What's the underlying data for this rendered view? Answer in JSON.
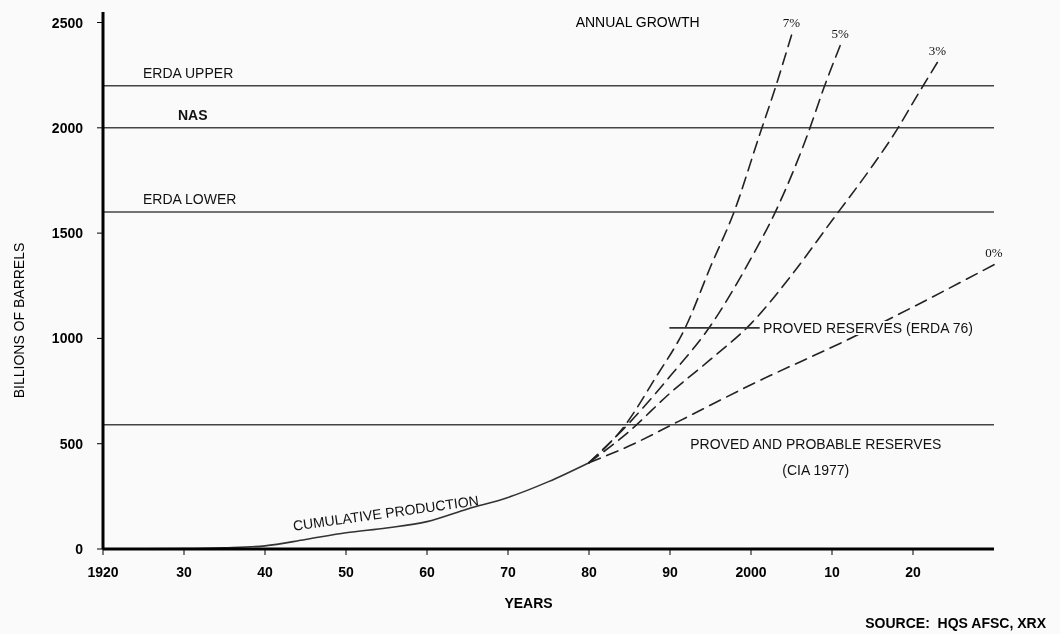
{
  "chart_data": {
    "type": "line",
    "xlabel": "YEARS",
    "ylabel": "BILLIONS OF BARRELS",
    "xlim": [
      1920,
      2030
    ],
    "xticks": [
      1920,
      {
        "value": 1930,
        "label": "30"
      },
      {
        "value": 1940,
        "label": "40"
      },
      {
        "value": 1950,
        "label": "50"
      },
      {
        "value": 1960,
        "label": "60"
      },
      {
        "value": 1970,
        "label": "70"
      },
      {
        "value": 1980,
        "label": "80"
      },
      {
        "value": 1990,
        "label": "90"
      },
      2000,
      {
        "value": 2010,
        "label": "10"
      },
      {
        "value": 2020,
        "label": "20"
      }
    ],
    "ylim": [
      0,
      2550
    ],
    "yticks": [
      0,
      500,
      1000,
      1500,
      2000,
      2500
    ],
    "grid": false,
    "marker": "none",
    "series": [
      {
        "name": "CUMULATIVE PRODUCTION",
        "color": "#333333",
        "line_style": "solid",
        "x": [
          1920,
          1930,
          1935,
          1940,
          1945,
          1950,
          1955,
          1960,
          1965,
          1970,
          1975,
          1980
        ],
        "values": [
          0,
          2,
          6,
          15,
          45,
          77,
          100,
          130,
          190,
          245,
          320,
          410
        ]
      },
      {
        "name": "7%",
        "color": "#222222",
        "line_style": "dashed",
        "x": [
          1980,
          1984.5,
          1988,
          1992,
          1995,
          1998,
          2001,
          2003,
          2005
        ],
        "values": [
          410,
          590,
          800,
          1060,
          1340,
          1610,
          1960,
          2190,
          2440
        ]
      },
      {
        "name": "5%",
        "color": "#222222",
        "line_style": "dashed",
        "x": [
          1980,
          1985,
          1990,
          1995,
          2000,
          2003,
          2007,
          2009,
          2011
        ],
        "values": [
          410,
          600,
          820,
          1060,
          1380,
          1600,
          1970,
          2190,
          2390
        ]
      },
      {
        "name": "3%",
        "color": "#222222",
        "line_style": "dashed",
        "x": [
          1980,
          1985,
          1990,
          1995,
          2000,
          2005,
          2010,
          2015,
          2018,
          2020,
          2023
        ],
        "values": [
          410,
          560,
          740,
          900,
          1070,
          1300,
          1560,
          1820,
          1990,
          2120,
          2310
        ]
      },
      {
        "name": "0%",
        "color": "#222222",
        "line_style": "dashed",
        "x": [
          1980,
          1985,
          1991,
          2000,
          2012,
          2018,
          2030
        ],
        "values": [
          410,
          490,
          605,
          780,
          995,
          1110,
          1350
        ]
      },
      {
        "name": "PROVED RESERVES (ERDA 76)",
        "color": "#333333",
        "line_style": "solid",
        "x": [
          1990,
          2001
        ],
        "values": [
          1050,
          1050
        ]
      }
    ],
    "ref_lines": [
      {
        "axis": "y",
        "value": 2200,
        "label": "ERDA UPPER",
        "color": "#444444"
      },
      {
        "axis": "y",
        "value": 2000,
        "label": "NAS",
        "color": "#444444"
      },
      {
        "axis": "y",
        "value": 1600,
        "label": "ERDA LOWER",
        "color": "#444444"
      },
      {
        "axis": "y",
        "value": 590,
        "label": "PROVED AND PROBABLE RESERVES (CIA 1977)",
        "color": "#444444"
      }
    ],
    "annotations": [
      "ANNUAL GROWTH",
      "SOURCE:  HQS AFSC, XRX"
    ]
  }
}
